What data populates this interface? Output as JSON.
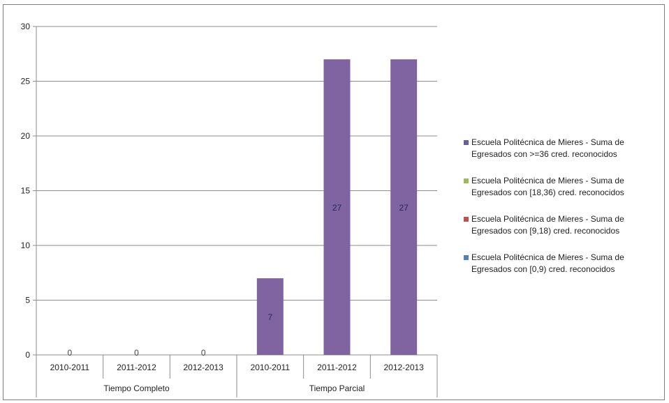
{
  "chart_data": {
    "type": "bar",
    "groups": [
      {
        "label": "Tiempo Completo",
        "categories": [
          "2010-2011",
          "2011-2012",
          "2012-2013"
        ]
      },
      {
        "label": "Tiempo Parcial",
        "categories": [
          "2010-2011",
          "2011-2012",
          "2012-2013"
        ]
      }
    ],
    "categories": [
      "2010-2011",
      "2011-2012",
      "2012-2013",
      "2010-2011",
      "2011-2012",
      "2012-2013"
    ],
    "series": [
      {
        "name": "Escuela Politécnica de Mieres - Suma de Egresados con >=36 cred. reconocidos",
        "color": "#8064a2",
        "values": [
          0,
          0,
          0,
          7,
          27,
          27
        ]
      },
      {
        "name": "Escuela Politécnica de Mieres - Suma de Egresados con [18,36) cred. reconocidos",
        "color": "#9bbb59",
        "values": [
          0,
          0,
          0,
          0,
          0,
          0
        ]
      },
      {
        "name": "Escuela Politécnica de Mieres - Suma de Egresados con [9,18) cred. reconocidos",
        "color": "#c0504d",
        "values": [
          0,
          0,
          0,
          0,
          0,
          0
        ]
      },
      {
        "name": "Escuela Politécnica de Mieres - Suma de Egresados con [0,9) cred. reconocidos",
        "color": "#4f81bd",
        "values": [
          0,
          0,
          0,
          0,
          0,
          0
        ]
      }
    ],
    "data_labels": [
      "0",
      "0",
      "0",
      "7",
      "27",
      "27"
    ],
    "ylim": [
      0,
      30
    ],
    "yticks": [
      0,
      5,
      10,
      15,
      20,
      25,
      30
    ],
    "grid": true,
    "legend_position": "right"
  },
  "legend": {
    "items": [
      {
        "text": "Escuela Politécnica de Mieres - Suma de\nEgresados con >=36 cred. reconocidos",
        "color": "#6b5e9a"
      },
      {
        "text": "Escuela Politécnica de Mieres - Suma de\nEgresados con [18,36) cred. reconocidos",
        "color": "#9bbb59"
      },
      {
        "text": "Escuela Politécnica de Mieres - Suma de\nEgresados con [9,18) cred. reconocidos",
        "color": "#c0504d"
      },
      {
        "text": "Escuela Politécnica de Mieres - Suma de\nEgresados con [0,9) cred. reconocidos",
        "color": "#4f81bd"
      }
    ]
  }
}
